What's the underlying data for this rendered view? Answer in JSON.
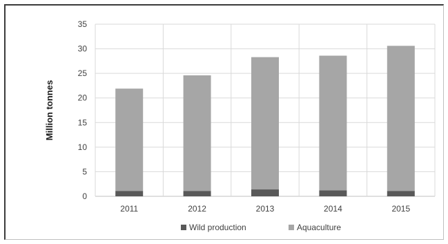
{
  "chart_data": {
    "type": "bar",
    "stacked": true,
    "categories": [
      "2011",
      "2012",
      "2013",
      "2014",
      "2015"
    ],
    "series": [
      {
        "name": "Wild production",
        "values": [
          1.1,
          1.1,
          1.4,
          1.2,
          1.1
        ],
        "color": "#595959"
      },
      {
        "name": "Aquaculture",
        "values": [
          20.8,
          23.5,
          26.9,
          27.4,
          29.5
        ],
        "color": "#a6a6a6"
      }
    ],
    "title": "",
    "xlabel": "",
    "ylabel": "Million tonnes",
    "ylim": [
      0,
      35
    ],
    "yticks": [
      "0",
      "5",
      "10",
      "15",
      "20",
      "25",
      "30",
      "35"
    ],
    "grid": true,
    "legend_position": "bottom"
  }
}
